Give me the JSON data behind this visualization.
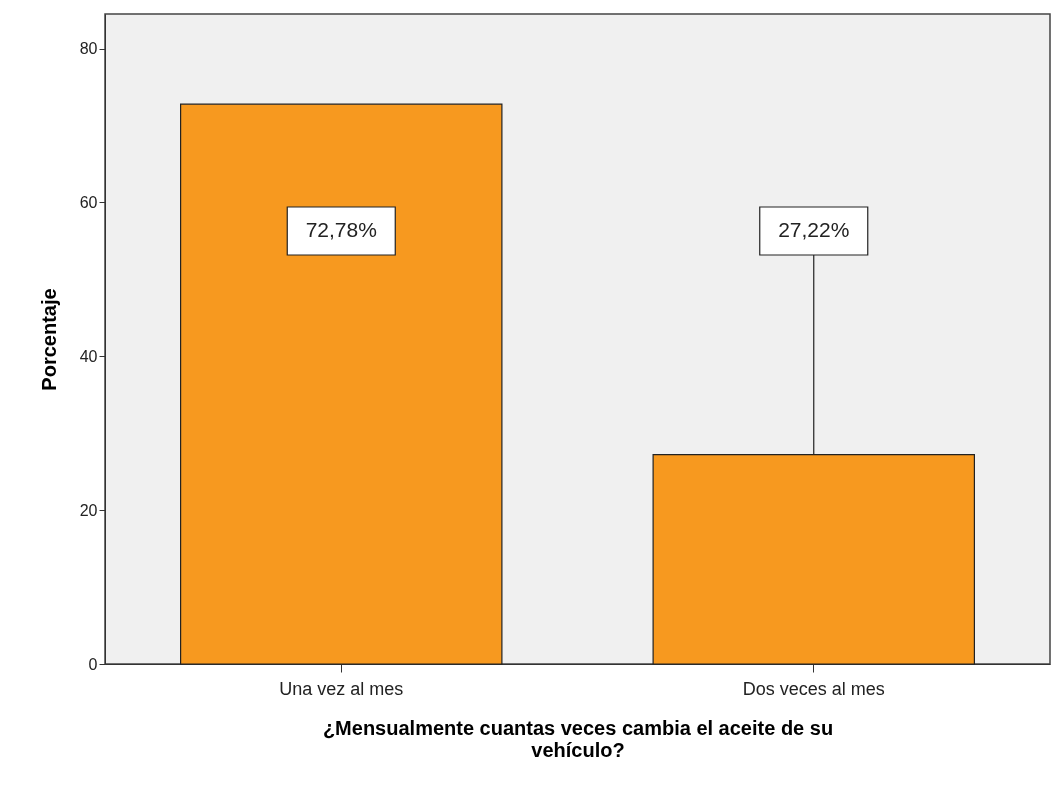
{
  "chart_data": {
    "type": "bar",
    "xlabel": "¿Mensualmente cuantas veces cambia el aceite de su vehículo?",
    "ylabel": "Porcentaje",
    "categories": [
      "Una vez al mes",
      "Dos veces al mes"
    ],
    "values": [
      72.78,
      27.22
    ],
    "value_labels": [
      "72,78%",
      "27,22%"
    ],
    "color": "#f7991f",
    "ylim": [
      0,
      84.5
    ],
    "yticks": [
      0,
      20,
      40,
      60,
      80
    ],
    "grid": false
  }
}
